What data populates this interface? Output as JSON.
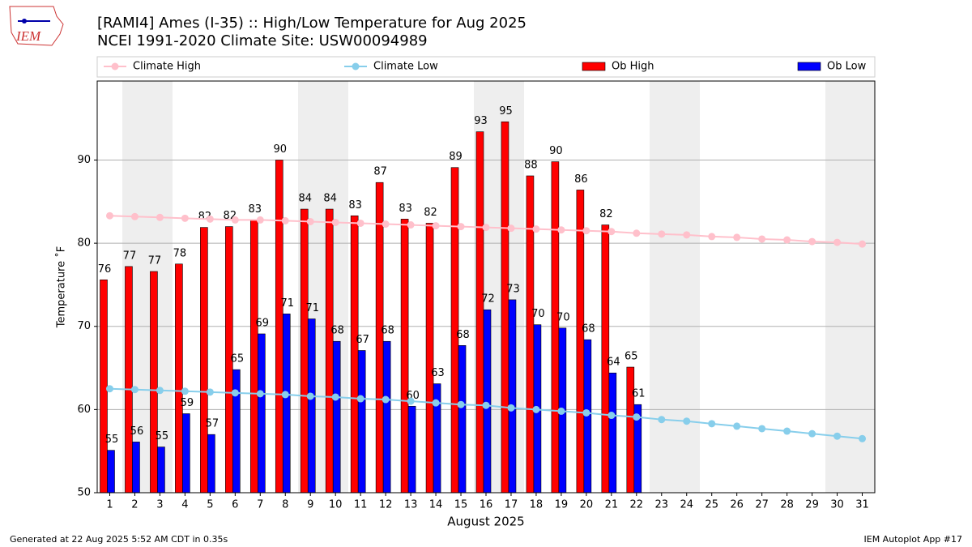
{
  "logo": "IEM",
  "footer_left": "Generated at 22 Aug 2025 5:52 AM CDT in 0.35s",
  "footer_right": "IEM Autoplot App #17",
  "chart_data": {
    "type": "bar",
    "title": "[RAMI4] Ames (I-35) :: High/Low Temperature for Aug 2025",
    "subtitle": "NCEI 1991-2020 Climate Site: USW00094989",
    "x_label": "August 2025",
    "y_label": "Temperature ˚F",
    "categories": [
      "1",
      "2",
      "3",
      "4",
      "5",
      "6",
      "7",
      "8",
      "9",
      "10",
      "11",
      "12",
      "13",
      "14",
      "15",
      "16",
      "17",
      "18",
      "19",
      "20",
      "21",
      "22",
      "23",
      "24",
      "25",
      "26",
      "27",
      "28",
      "29",
      "30",
      "31"
    ],
    "ylim": [
      50,
      99.5
    ],
    "yticks": [
      50,
      60,
      70,
      80,
      90
    ],
    "grid": true,
    "legend": "top",
    "series": [
      {
        "name": "Climate High",
        "kind": "line",
        "color": "#ffc0cb",
        "values": [
          83.3,
          83.2,
          83.1,
          83.0,
          82.9,
          82.8,
          82.8,
          82.7,
          82.6,
          82.5,
          82.4,
          82.3,
          82.2,
          82.1,
          82.0,
          81.9,
          81.8,
          81.7,
          81.6,
          81.5,
          81.4,
          81.2,
          81.1,
          81.0,
          80.8,
          80.7,
          80.5,
          80.4,
          80.2,
          80.1,
          79.9
        ]
      },
      {
        "name": "Climate Low",
        "kind": "line",
        "color": "#87ceeb",
        "values": [
          62.5,
          62.4,
          62.3,
          62.2,
          62.1,
          62.0,
          61.9,
          61.8,
          61.6,
          61.5,
          61.3,
          61.2,
          61.0,
          60.8,
          60.6,
          60.5,
          60.2,
          60.0,
          59.8,
          59.6,
          59.3,
          59.1,
          58.8,
          58.6,
          58.3,
          58.0,
          57.7,
          57.4,
          57.1,
          56.8,
          56.5
        ]
      },
      {
        "name": "Ob High",
        "kind": "bar",
        "color": "#ff0000",
        "values": [
          75.6,
          77.2,
          76.6,
          77.5,
          81.9,
          82.0,
          82.8,
          90.0,
          84.1,
          84.1,
          83.3,
          87.3,
          82.9,
          82.4,
          89.1,
          93.4,
          94.6,
          88.1,
          89.8,
          86.4,
          82.2,
          65.1,
          null,
          null,
          null,
          null,
          null,
          null,
          null,
          null,
          null
        ],
        "value_labels": [
          "76",
          "77",
          "77",
          "78",
          "82",
          "82",
          "83",
          "90",
          "84",
          "84",
          "83",
          "87",
          "83",
          "82",
          "89",
          "93",
          "95",
          "88",
          "90",
          "86",
          "82",
          "65",
          null,
          null,
          null,
          null,
          null,
          null,
          null,
          null,
          null
        ]
      },
      {
        "name": "Ob Low",
        "kind": "bar",
        "color": "#0000ff",
        "values": [
          55.1,
          56.1,
          55.5,
          59.5,
          57.0,
          64.8,
          69.1,
          71.5,
          70.9,
          68.2,
          67.1,
          68.2,
          60.4,
          63.1,
          67.7,
          72.0,
          73.2,
          70.2,
          69.8,
          68.4,
          64.4,
          60.6,
          null,
          null,
          null,
          null,
          null,
          null,
          null,
          null,
          null
        ],
        "value_labels": [
          "55",
          "56",
          "55",
          "59",
          "57",
          "65",
          "69",
          "71",
          "71",
          "68",
          "67",
          "68",
          "60",
          "63",
          "68",
          "72",
          "73",
          "70",
          "70",
          "68",
          "64",
          "61",
          null,
          null,
          null,
          null,
          null,
          null,
          null,
          null,
          null
        ]
      }
    ]
  }
}
